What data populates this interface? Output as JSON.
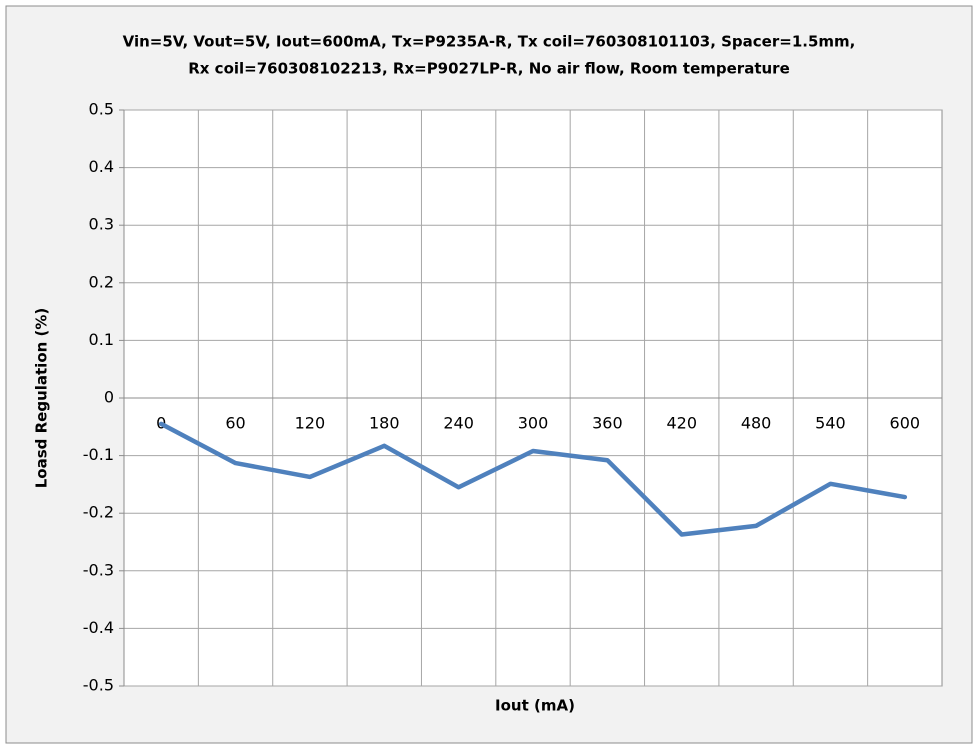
{
  "chart_data": {
    "type": "line",
    "title": [
      "Vin=5V, Vout=5V, Iout=600mA, Tx=P9235A-R, Tx coil=760308101103, Spacer=1.5mm,",
      "Rx coil=760308102213, Rx=P9027LP-R, No air flow, Room temperature"
    ],
    "x_label": "Iout (mA)",
    "y_label": "Loasd Regulation (%)",
    "categories": [
      "0",
      "60",
      "120",
      "180",
      "240",
      "300",
      "360",
      "420",
      "480",
      "540",
      "600"
    ],
    "values": [
      -0.045,
      -0.113,
      -0.137,
      -0.083,
      -0.155,
      -0.092,
      -0.108,
      -0.237,
      -0.222,
      -0.149,
      -0.172
    ],
    "color": "#4f81bd",
    "ylim": [
      -0.5,
      0.5
    ],
    "yticks": [
      -0.5,
      -0.4,
      -0.3,
      -0.2,
      -0.1,
      0,
      0.1,
      0.2,
      0.3,
      0.4,
      0.5
    ],
    "grid": true
  }
}
